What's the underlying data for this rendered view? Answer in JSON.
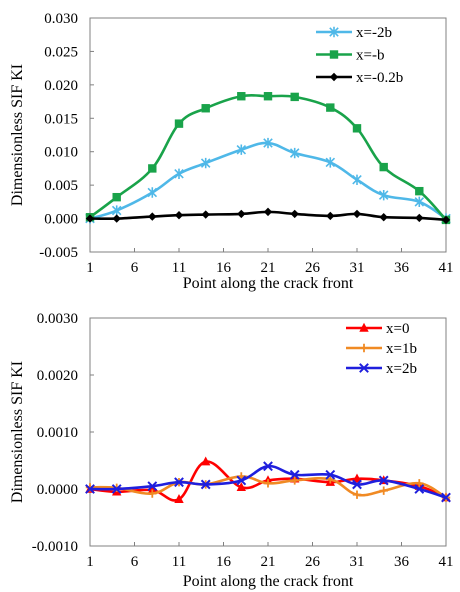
{
  "chart_data": [
    {
      "type": "line",
      "xlabel": "Point along the crack front",
      "ylabel": "Dimensionless SIF KI",
      "categories": [
        "1",
        "6",
        "11",
        "16",
        "21",
        "26",
        "31",
        "36",
        "41"
      ],
      "x_tick_labels": [
        "1",
        "6",
        "11",
        "16",
        "21",
        "26",
        "31",
        "36",
        "41"
      ],
      "y_tick_labels": [
        "0.030",
        "0.025",
        "0.020",
        "0.015",
        "0.010",
        "0.005",
        "0.000",
        "-0.005"
      ],
      "xlim": [
        1,
        41
      ],
      "ylim": [
        -0.005,
        0.03
      ],
      "grid": false,
      "legend_position": "top-right",
      "x": [
        1,
        4,
        8,
        11,
        14,
        18,
        21,
        24,
        28,
        31,
        34,
        38,
        41
      ],
      "series": [
        {
          "name": "x=-2b",
          "color": "#4fb8e8",
          "marker": "star",
          "values": [
            0.0,
            0.0012,
            0.0039,
            0.0067,
            0.0083,
            0.0103,
            0.0113,
            0.0098,
            0.0084,
            0.0058,
            0.0035,
            0.0025,
            0.0
          ]
        },
        {
          "name": "x=-b",
          "color": "#19a34a",
          "marker": "square",
          "values": [
            0.0002,
            0.0032,
            0.0075,
            0.0142,
            0.0165,
            0.0183,
            0.0183,
            0.0182,
            0.0166,
            0.0135,
            0.0077,
            0.0041,
            -0.0002
          ]
        },
        {
          "name": "x=-0.2b",
          "color": "#000000",
          "marker": "diamond",
          "values": [
            0.0,
            0.0,
            0.0003,
            0.0005,
            0.0006,
            0.0007,
            0.001,
            0.0007,
            0.0004,
            0.0007,
            0.0002,
            0.0001,
            -0.0002
          ]
        }
      ]
    },
    {
      "type": "line",
      "xlabel": "Point along the crack front",
      "ylabel": "Dimensionless SIF KI",
      "categories": [
        "1",
        "6",
        "11",
        "16",
        "21",
        "26",
        "31",
        "36",
        "41"
      ],
      "x_tick_labels": [
        "1",
        "6",
        "11",
        "16",
        "21",
        "26",
        "31",
        "36",
        "41"
      ],
      "y_tick_labels": [
        "0.0030",
        "0.0020",
        "0.0010",
        "0.0000",
        "-0.0010"
      ],
      "xlim": [
        1,
        41
      ],
      "ylim": [
        -0.001,
        0.003
      ],
      "grid": false,
      "legend_position": "top-right",
      "x": [
        1,
        4,
        8,
        11,
        14,
        18,
        21,
        24,
        28,
        31,
        34,
        38,
        41
      ],
      "series": [
        {
          "name": "x=0",
          "color": "#ff0000",
          "marker": "triangle",
          "values": [
            0.0,
            -5e-05,
            -2e-05,
            -0.00018,
            0.00048,
            3e-05,
            0.00015,
            0.00018,
            0.00012,
            0.00018,
            0.00015,
            5e-05,
            -0.00015
          ]
        },
        {
          "name": "x=1b",
          "color": "#f08a24",
          "marker": "plus",
          "values": [
            3e-05,
            2e-05,
            -8e-05,
            0.00012,
            8e-05,
            0.00022,
            0.0001,
            0.00015,
            0.00017,
            -0.0001,
            -3e-05,
            0.0001,
            -0.00015
          ]
        },
        {
          "name": "x=2b",
          "color": "#1f1fdd",
          "marker": "x",
          "values": [
            0.0,
            0.0,
            5e-05,
            0.00012,
            8e-05,
            0.00015,
            0.0004,
            0.00025,
            0.00025,
            8e-05,
            0.00015,
            0.0,
            -0.00015
          ]
        }
      ]
    }
  ]
}
